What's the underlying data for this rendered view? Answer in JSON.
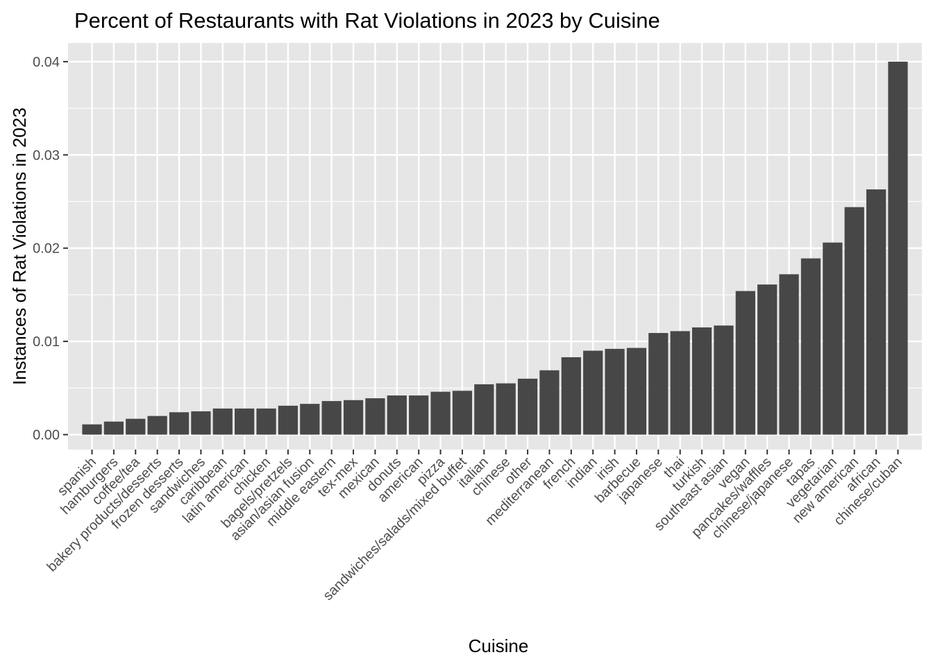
{
  "chart_data": {
    "type": "bar",
    "title": "Percent of Restaurants with Rat Violations in 2023 by Cuisine",
    "xlabel": "Cuisine",
    "ylabel": "Instances of Rat Violations in 2023",
    "ylim": [
      -0.0016,
      0.042
    ],
    "yticks": [
      0.0,
      0.01,
      0.02,
      0.03,
      0.04
    ],
    "ytick_labels": [
      "0.00",
      "0.01",
      "0.02",
      "0.03",
      "0.04"
    ],
    "grid": true,
    "legend": "none",
    "colors": {
      "bar": "#474747",
      "panel": "#e6e6e6",
      "grid": "#ffffff"
    },
    "categories": [
      "spanish",
      "hamburgers",
      "coffee/tea",
      "bakery products/desserts",
      "frozen desserts",
      "sandwiches",
      "caribbean",
      "latin american",
      "chicken",
      "bagels/pretzels",
      "asian/asian fusion",
      "middle eastern",
      "tex-mex",
      "mexican",
      "donuts",
      "american",
      "pizza",
      "sandwiches/salads/mixed buffet",
      "italian",
      "chinese",
      "other",
      "mediterranean",
      "french",
      "indian",
      "irish",
      "barbecue",
      "japanese",
      "thai",
      "turkish",
      "southeast asian",
      "vegan",
      "pancakes/waffles",
      "chinese/japanese",
      "tapas",
      "vegetarian",
      "new american",
      "african",
      "chinese/cuban"
    ],
    "values": [
      0.0011,
      0.0014,
      0.0017,
      0.002,
      0.0024,
      0.0025,
      0.0028,
      0.0028,
      0.0028,
      0.0031,
      0.0033,
      0.0036,
      0.0037,
      0.0039,
      0.0042,
      0.0042,
      0.0046,
      0.0047,
      0.0054,
      0.0055,
      0.006,
      0.0069,
      0.0083,
      0.009,
      0.0092,
      0.0093,
      0.0109,
      0.0111,
      0.0115,
      0.0117,
      0.0154,
      0.0161,
      0.0172,
      0.0189,
      0.0206,
      0.0244,
      0.0263,
      0.04
    ]
  }
}
